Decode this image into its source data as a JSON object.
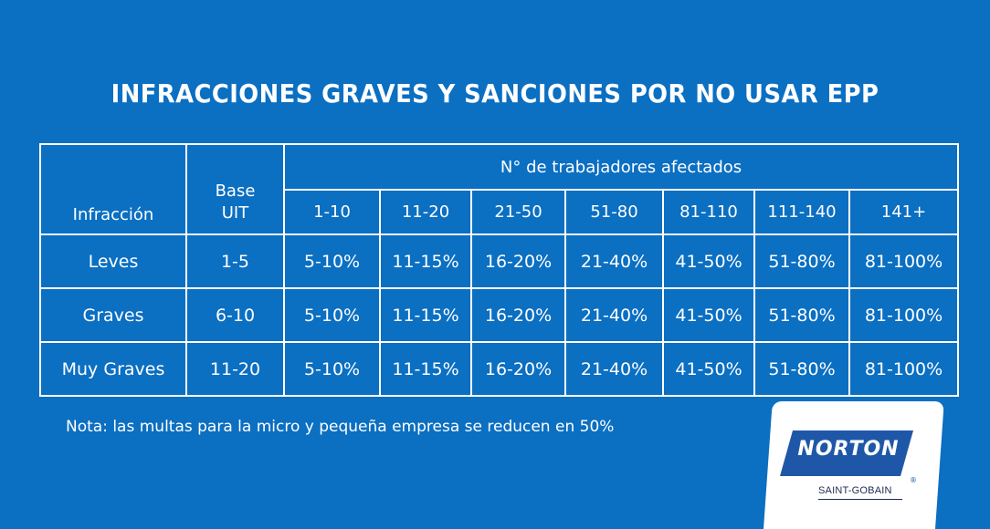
{
  "title": "INFRACCIONES GRAVES Y SANCIONES POR NO USAR EPP",
  "table": {
    "header_infraccion": "Infracción",
    "header_base_line1": "Base",
    "header_base_line2": "UIT",
    "header_group": "N° de trabajadores afectados",
    "columns": [
      "1-10",
      "11-20",
      "21-50",
      "51-80",
      "81-110",
      "111-140",
      "141+"
    ],
    "rows": [
      {
        "infraccion": "Leves",
        "base": "1-5",
        "values": [
          "5-10%",
          "11-15%",
          "16-20%",
          "21-40%",
          "41-50%",
          "51-80%",
          "81-100%"
        ]
      },
      {
        "infraccion": "Graves",
        "base": "6-10",
        "values": [
          "5-10%",
          "11-15%",
          "16-20%",
          "21-40%",
          "41-50%",
          "51-80%",
          "81-100%"
        ]
      },
      {
        "infraccion": "Muy Graves",
        "base": "11-20",
        "values": [
          "5-10%",
          "11-15%",
          "16-20%",
          "21-40%",
          "41-50%",
          "51-80%",
          "81-100%"
        ]
      }
    ]
  },
  "note": "Nota: las multas para la micro y pequeña empresa se reducen en 50%",
  "logo": {
    "brand": "NORTON",
    "sub": "SAINT-GOBAIN",
    "registered": "®",
    "brand_color": "#1f57a8",
    "background_color": "#0b6fc2"
  }
}
